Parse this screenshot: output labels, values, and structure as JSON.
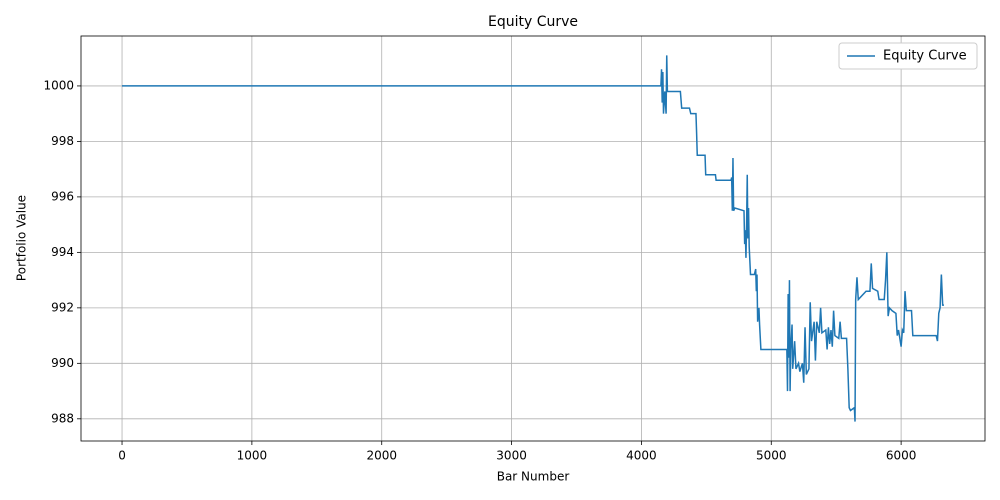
{
  "chart_data": {
    "type": "line",
    "title": "Equity Curve",
    "x_label": "Bar Number",
    "y_label": "Portfolio Value",
    "legend": "upper right",
    "grid": true,
    "xlim": [
      -316,
      6646
    ],
    "xticks": [
      0,
      1000,
      2000,
      3000,
      4000,
      5000,
      6000
    ],
    "ylim": [
      987.2,
      1001.8
    ],
    "yticks": [
      988,
      990,
      992,
      994,
      996,
      998,
      1000
    ],
    "x": [
      0,
      4150,
      4155,
      4160,
      4165,
      4170,
      4180,
      4190,
      4195,
      4200,
      4300,
      4310,
      4370,
      4380,
      4420,
      4425,
      4430,
      4490,
      4495,
      4570,
      4575,
      4690,
      4695,
      4700,
      4705,
      4710,
      4720,
      4790,
      4795,
      4800,
      4805,
      4810,
      4815,
      4820,
      4825,
      4830,
      4840,
      4870,
      4880,
      4885,
      4890,
      4895,
      4905,
      4910,
      4920,
      5120,
      5125,
      5130,
      5135,
      5140,
      5145,
      5150,
      5160,
      5165,
      5180,
      5190,
      5210,
      5220,
      5240,
      5250,
      5260,
      5270,
      5290,
      5300,
      5310,
      5330,
      5340,
      5350,
      5370,
      5380,
      5390,
      5420,
      5430,
      5440,
      5450,
      5460,
      5470,
      5480,
      5490,
      5520,
      5530,
      5540,
      5580,
      5590,
      5600,
      5610,
      5640,
      5645,
      5650,
      5660,
      5670,
      5730,
      5760,
      5770,
      5780,
      5820,
      5830,
      5870,
      5880,
      5890,
      5900,
      5910,
      5930,
      5960,
      5970,
      5980,
      6000,
      6010,
      6020,
      6030,
      6040,
      6080,
      6090,
      6270,
      6280,
      6290,
      6300,
      6310,
      6320,
      6330
    ],
    "series": [
      {
        "name": "Equity Curve",
        "color": "#1f77b4",
        "values": [
          1000,
          1000,
          1000.6,
          999.4,
          1000.5,
          999,
          999.8,
          999,
          1001.1,
          999.8,
          999.8,
          999.2,
          999.2,
          999,
          999,
          998.3,
          997.5,
          997.5,
          996.8,
          996.8,
          996.6,
          996.6,
          996.7,
          995.5,
          997.4,
          995.5,
          995.6,
          995.5,
          994.3,
          994.8,
          993.8,
          995,
          996.8,
          994.5,
          995.6,
          994.2,
          993.2,
          993.2,
          993.4,
          992.6,
          993.2,
          991.5,
          992,
          991.4,
          990.5,
          990.5,
          989,
          992.5,
          990.2,
          993,
          989,
          990.5,
          991.4,
          989.8,
          990.8,
          989.8,
          990,
          989.7,
          990,
          989.3,
          991.3,
          989.6,
          989.8,
          992.2,
          990.8,
          991.5,
          990.1,
          991.5,
          991.1,
          992,
          991.1,
          991.2,
          990.5,
          991.3,
          990.7,
          991.2,
          990.6,
          991.9,
          991,
          990.9,
          991.5,
          990.9,
          990.9,
          989.8,
          988.4,
          988.3,
          988.4,
          987.9,
          992.3,
          993.1,
          992.3,
          992.6,
          992.6,
          993.6,
          992.7,
          992.6,
          992.3,
          992.3,
          993,
          994,
          991.7,
          992,
          991.9,
          991.8,
          991,
          991.2,
          990.6,
          991.2,
          991.1,
          992.6,
          991.9,
          991.9,
          991,
          991,
          990.8,
          991.8,
          992,
          993.2,
          992.1,
          992.1
        ]
      }
    ]
  }
}
